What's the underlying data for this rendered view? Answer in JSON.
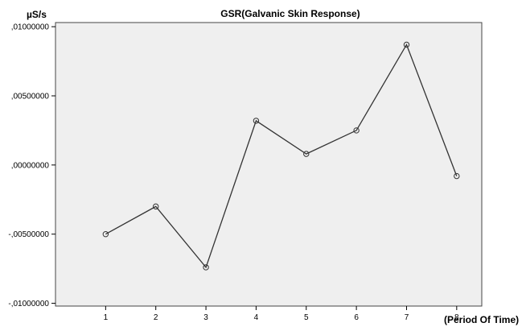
{
  "chart_data": {
    "type": "line",
    "title": "GSR(Galvanic Skin Response)",
    "ylabel": "µS/s",
    "xlabel": "(Period Of Time)",
    "x": [
      1,
      2,
      3,
      4,
      5,
      6,
      7,
      8
    ],
    "series": [
      {
        "values": [
          -0.005,
          -0.003,
          -0.0074,
          0.0032,
          0.0008,
          0.0025,
          0.0087,
          -0.0008
        ]
      }
    ],
    "ylim": [
      -0.0102,
      0.0103
    ],
    "yticks": [
      {
        "value": 0.01,
        "label": ",01000000"
      },
      {
        "value": 0.005,
        "label": ",00500000"
      },
      {
        "value": 0.0,
        "label": ",00000000"
      },
      {
        "value": -0.005,
        "label": "-,00500000"
      },
      {
        "value": -0.01,
        "label": "-,01000000"
      }
    ],
    "xlim": [
      0,
      8.5
    ],
    "grid": false,
    "colors": {
      "line": "#333333",
      "plot_background": "#efefef",
      "frame": "#444444"
    }
  }
}
